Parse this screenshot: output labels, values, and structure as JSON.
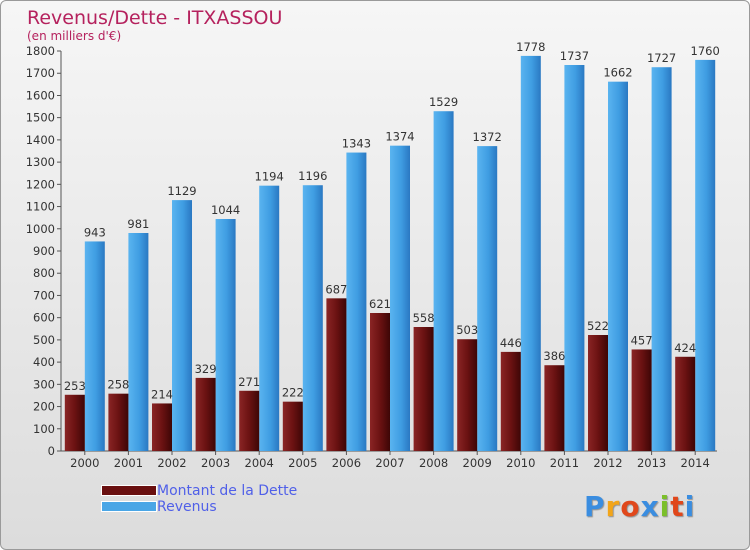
{
  "title": "Revenus/Dette - ITXASSOU",
  "subtitle": "(en milliers d'€)",
  "colors": {
    "dette": "#7a1a1a",
    "revenus": "#4aa6e6",
    "title": "#b5215d",
    "legend_text": "#5060e8"
  },
  "legend": [
    {
      "label": "Montant de la Dette",
      "color": "#6a1010"
    },
    {
      "label": "Revenus",
      "color": "#4aa6e6"
    }
  ],
  "logo": {
    "text": "Proxiti",
    "colors": [
      "#3a8de0",
      "#f2a51a",
      "#e0471b",
      "#3a8de0",
      "#7bbf2a",
      "#e0471b",
      "#3a8de0"
    ]
  },
  "chart_data": {
    "type": "bar",
    "title": "Revenus/Dette - ITXASSOU",
    "subtitle": "(en milliers d'€)",
    "categories": [
      "2000",
      "2001",
      "2002",
      "2003",
      "2004",
      "2005",
      "2006",
      "2007",
      "2008",
      "2009",
      "2010",
      "2011",
      "2012",
      "2013",
      "2014"
    ],
    "series": [
      {
        "name": "Montant de la Dette",
        "values": [
          253,
          258,
          214,
          329,
          271,
          222,
          687,
          621,
          558,
          503,
          446,
          386,
          522,
          457,
          424
        ]
      },
      {
        "name": "Revenus",
        "values": [
          943,
          981,
          1129,
          1044,
          1194,
          1196,
          1343,
          1374,
          1529,
          1372,
          1778,
          1737,
          1662,
          1727,
          1760
        ]
      }
    ],
    "ylim": [
      0,
      1800
    ],
    "ytick_step": 100,
    "grid": false,
    "legend_position": "bottom-left"
  }
}
